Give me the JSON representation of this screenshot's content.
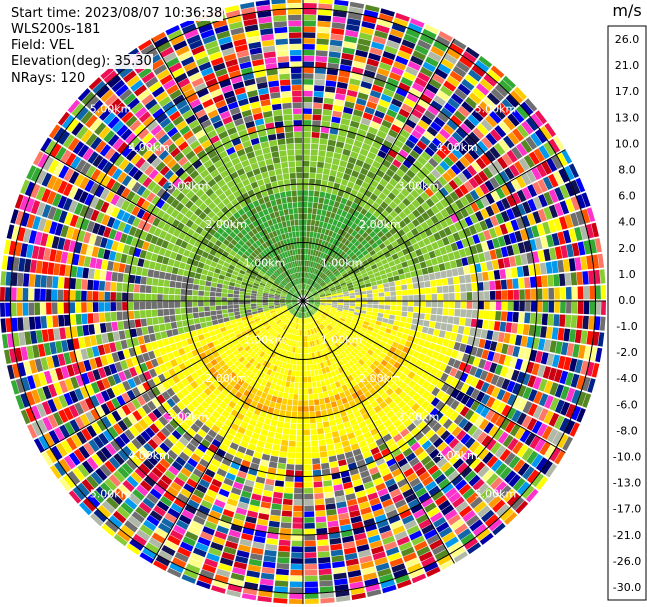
{
  "info": {
    "start_time": "Start time: 2023/08/07 10:36:38",
    "instrument": "WLS200s-181",
    "field": "Field: VEL",
    "elevation": "Elevation(deg): 35.30",
    "nrays": "NRays: 120"
  },
  "chart_data": {
    "type": "heatmap",
    "projection": "polar PPI",
    "field": "VEL",
    "units": "m/s",
    "nrays": 120,
    "range_rings_km": [
      1.0,
      2.0,
      3.0,
      4.0,
      5.0
    ],
    "ring_labels": [
      "1.00km",
      "2.00km",
      "3.00km",
      "4.00km",
      "5.00km"
    ],
    "colorbar": {
      "unit_label": "m/s",
      "tick_labels": [
        "26.0",
        "21.0",
        "17.0",
        "13.0",
        "10.0",
        "8.0",
        "6.0",
        "4.0",
        "2.0",
        "1.0",
        "0.0",
        "-1.0",
        "-2.0",
        "-4.0",
        "-6.0",
        "-8.0",
        "-10.0",
        "-13.0",
        "-17.0",
        "-21.0",
        "-26.0",
        "-30.0"
      ],
      "segment_colors": [
        "#ff33cc",
        "#ee1155",
        "#cc0011",
        "#ff1100",
        "#ff5500",
        "#ff7766",
        "#ff9900",
        "#ffcc00",
        "#ffff00",
        "#ffff88",
        "#6f6f6f",
        "#b0b8a8",
        "#88cc33",
        "#558822",
        "#33aa33",
        "#1166aa",
        "#0099ee",
        "#0000ff",
        "#0000aa",
        "#002288",
        "#000066",
        "#111155"
      ]
    }
  }
}
